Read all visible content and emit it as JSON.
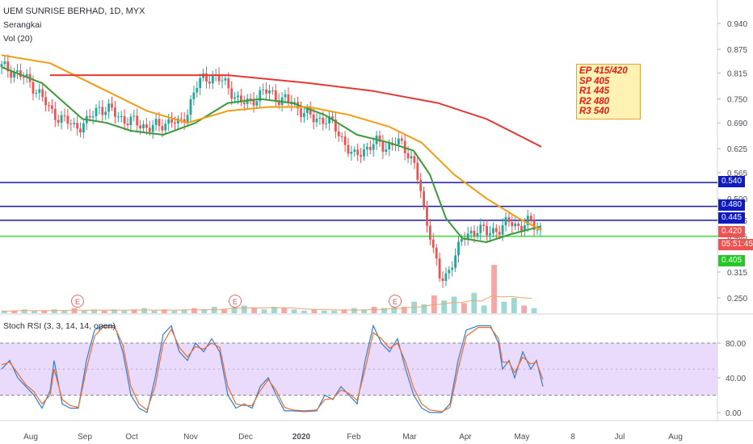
{
  "header": {
    "symbol_line": "UEM SUNRISE BERHAD, 1D, MYX",
    "indicator_1": "Serangkai",
    "indicator_2": "Vol (20)",
    "sub_indicator": "Stoch RSI (3, 3, 14, 14, open)"
  },
  "note": {
    "lines": [
      "EP 415/420",
      "SP 405",
      "R1 445",
      "R2 480",
      "R3 540"
    ]
  },
  "price_tags": [
    {
      "text": "0.540",
      "color": "#0f1bbf"
    },
    {
      "text": "0.480",
      "color": "#0f1bbf"
    },
    {
      "text": "0.445",
      "color": "#0f1bbf"
    },
    {
      "text": "0.420",
      "color": "#ef5350"
    },
    {
      "text": "05:51:45",
      "color": "#ef5350"
    },
    {
      "text": "0.405",
      "color": "#26c726"
    }
  ],
  "colors": {
    "up": "#26a69a",
    "down": "#ef5350",
    "ma_fast": "#3a9a3a",
    "ma_mid": "#f39c12",
    "ma_slow": "#e53935",
    "level_line": "#1a1aa8",
    "support_line": "#33dd33",
    "stoch_k": "#2f7fd8",
    "stoch_d": "#ef6c2c",
    "stoch_band": "#e6d4fb"
  },
  "chart_data": [
    {
      "type": "candlestick",
      "title": "UEM SUNRISE BERHAD, 1D, MYX",
      "x_ticks": [
        "Aug",
        "Sep",
        "Oct",
        "Nov",
        "Dec",
        "2020",
        "Feb",
        "Mar",
        "Apr",
        "May",
        "8",
        "Jul",
        "Aug"
      ],
      "y_ticks": [
        "0.940",
        "0.875",
        "0.815",
        "0.750",
        "0.690",
        "0.625",
        "0.565",
        "0.500",
        "0.445",
        "0.405",
        "0.315",
        "0.250"
      ],
      "ylim": [
        0.22,
        0.97
      ],
      "horizontal_levels": [
        {
          "value": 0.54,
          "label": "R3"
        },
        {
          "value": 0.48,
          "label": "R2"
        },
        {
          "value": 0.445,
          "label": "R1"
        },
        {
          "value": 0.405,
          "label": "SP"
        }
      ],
      "close_series_approx": [
        [
          0,
          0.83
        ],
        [
          15,
          0.82
        ],
        [
          30,
          0.8
        ],
        [
          45,
          0.77
        ],
        [
          60,
          0.72
        ],
        [
          75,
          0.7
        ],
        [
          90,
          0.68
        ],
        [
          105,
          0.69
        ],
        [
          120,
          0.73
        ],
        [
          135,
          0.72
        ],
        [
          150,
          0.7
        ],
        [
          165,
          0.69
        ],
        [
          180,
          0.68
        ],
        [
          195,
          0.68
        ],
        [
          210,
          0.7
        ],
        [
          220,
          0.68
        ],
        [
          230,
          0.72
        ],
        [
          240,
          0.78
        ],
        [
          250,
          0.8
        ],
        [
          262,
          0.81
        ],
        [
          275,
          0.79
        ],
        [
          285,
          0.77
        ],
        [
          295,
          0.74
        ],
        [
          305,
          0.74
        ],
        [
          318,
          0.76
        ],
        [
          330,
          0.77
        ],
        [
          345,
          0.75
        ],
        [
          360,
          0.74
        ],
        [
          372,
          0.72
        ],
        [
          385,
          0.7
        ],
        [
          400,
          0.7
        ],
        [
          412,
          0.68
        ],
        [
          425,
          0.64
        ],
        [
          435,
          0.6
        ],
        [
          445,
          0.62
        ],
        [
          455,
          0.63
        ],
        [
          465,
          0.64
        ],
        [
          475,
          0.63
        ],
        [
          488,
          0.64
        ],
        [
          498,
          0.63
        ],
        [
          505,
          0.61
        ],
        [
          512,
          0.58
        ],
        [
          518,
          0.52
        ],
        [
          524,
          0.45
        ],
        [
          530,
          0.42
        ],
        [
          536,
          0.36
        ],
        [
          542,
          0.3
        ],
        [
          548,
          0.29
        ],
        [
          554,
          0.32
        ],
        [
          560,
          0.36
        ],
        [
          566,
          0.38
        ],
        [
          572,
          0.4
        ],
        [
          580,
          0.41
        ],
        [
          590,
          0.43
        ],
        [
          600,
          0.41
        ],
        [
          610,
          0.42
        ],
        [
          620,
          0.43
        ],
        [
          630,
          0.44
        ],
        [
          640,
          0.43
        ],
        [
          650,
          0.44
        ],
        [
          660,
          0.43
        ],
        [
          668,
          0.42
        ]
      ],
      "moving_averages": [
        {
          "name": "fast",
          "approx": [
            [
              0,
              0.83
            ],
            [
              50,
              0.79
            ],
            [
              100,
              0.7
            ],
            [
              130,
              0.69
            ],
            [
              160,
              0.67
            ],
            [
              200,
              0.66
            ],
            [
              240,
              0.69
            ],
            [
              280,
              0.74
            ],
            [
              320,
              0.75
            ],
            [
              360,
              0.74
            ],
            [
              400,
              0.71
            ],
            [
              440,
              0.66
            ],
            [
              480,
              0.64
            ],
            [
              510,
              0.62
            ],
            [
              530,
              0.56
            ],
            [
              550,
              0.45
            ],
            [
              570,
              0.4
            ],
            [
              600,
              0.39
            ],
            [
              630,
              0.41
            ],
            [
              668,
              0.43
            ]
          ]
        },
        {
          "name": "mid",
          "approx": [
            [
              0,
              0.86
            ],
            [
              60,
              0.84
            ],
            [
              120,
              0.78
            ],
            [
              180,
              0.72
            ],
            [
              230,
              0.69
            ],
            [
              280,
              0.72
            ],
            [
              330,
              0.73
            ],
            [
              380,
              0.73
            ],
            [
              430,
              0.71
            ],
            [
              480,
              0.68
            ],
            [
              520,
              0.64
            ],
            [
              560,
              0.56
            ],
            [
              600,
              0.5
            ],
            [
              640,
              0.45
            ],
            [
              668,
              0.42
            ]
          ]
        },
        {
          "name": "slow",
          "approx": [
            [
              60,
              0.81
            ],
            [
              180,
              0.81
            ],
            [
              280,
              0.81
            ],
            [
              380,
              0.79
            ],
            [
              460,
              0.77
            ],
            [
              540,
              0.74
            ],
            [
              600,
              0.7
            ],
            [
              668,
              0.63
            ]
          ]
        }
      ],
      "volume_pattern_approx": [
        2,
        2,
        3,
        2,
        2,
        3,
        2,
        4,
        2,
        3,
        2,
        3,
        2,
        3,
        4,
        2,
        3,
        2,
        3,
        4,
        3,
        5,
        3,
        8,
        6,
        4,
        3,
        5,
        4,
        3,
        2,
        3,
        2,
        2,
        3,
        4,
        3,
        5,
        4,
        6,
        5,
        9,
        7,
        14,
        10,
        13,
        8,
        16,
        6,
        38,
        9,
        12,
        6,
        4
      ],
      "earnings_markers": [
        "E",
        "E",
        "E"
      ]
    },
    {
      "type": "line",
      "title": "Stoch RSI (3, 3, 14, 14, open)",
      "y_ticks": [
        "80.00",
        "40.00",
        "0.00"
      ],
      "ylim": [
        -10,
        108
      ],
      "band": [
        20,
        80
      ],
      "series": [
        {
          "name": "K",
          "approx": [
            [
              0,
              50
            ],
            [
              10,
              60
            ],
            [
              20,
              40
            ],
            [
              30,
              30
            ],
            [
              40,
              20
            ],
            [
              50,
              5
            ],
            [
              60,
              25
            ],
            [
              65,
              60
            ],
            [
              75,
              10
            ],
            [
              85,
              5
            ],
            [
              95,
              5
            ],
            [
              105,
              60
            ],
            [
              115,
              95
            ],
            [
              125,
              100
            ],
            [
              140,
              100
            ],
            [
              150,
              70
            ],
            [
              160,
              20
            ],
            [
              170,
              5
            ],
            [
              180,
              0
            ],
            [
              190,
              40
            ],
            [
              200,
              90
            ],
            [
              210,
              100
            ],
            [
              220,
              70
            ],
            [
              230,
              60
            ],
            [
              240,
              80
            ],
            [
              250,
              70
            ],
            [
              260,
              85
            ],
            [
              270,
              70
            ],
            [
              280,
              20
            ],
            [
              290,
              5
            ],
            [
              300,
              10
            ],
            [
              310,
              5
            ],
            [
              320,
              30
            ],
            [
              330,
              40
            ],
            [
              340,
              20
            ],
            [
              350,
              2
            ],
            [
              360,
              2
            ],
            [
              375,
              1
            ],
            [
              390,
              2
            ],
            [
              400,
              20
            ],
            [
              410,
              15
            ],
            [
              420,
              30
            ],
            [
              430,
              20
            ],
            [
              440,
              10
            ],
            [
              450,
              60
            ],
            [
              460,
              100
            ],
            [
              470,
              80
            ],
            [
              480,
              70
            ],
            [
              490,
              85
            ],
            [
              500,
              50
            ],
            [
              510,
              20
            ],
            [
              520,
              5
            ],
            [
              530,
              0
            ],
            [
              545,
              0
            ],
            [
              555,
              10
            ],
            [
              565,
              60
            ],
            [
              575,
              95
            ],
            [
              590,
              100
            ],
            [
              605,
              100
            ],
            [
              615,
              80
            ],
            [
              620,
              50
            ],
            [
              628,
              60
            ],
            [
              635,
              40
            ],
            [
              645,
              70
            ],
            [
              655,
              50
            ],
            [
              662,
              60
            ],
            [
              670,
              30
            ]
          ]
        },
        {
          "name": "D",
          "approx": [
            [
              0,
              55
            ],
            [
              10,
              58
            ],
            [
              20,
              45
            ],
            [
              30,
              32
            ],
            [
              40,
              24
            ],
            [
              50,
              10
            ],
            [
              60,
              20
            ],
            [
              65,
              50
            ],
            [
              75,
              15
            ],
            [
              85,
              8
            ],
            [
              95,
              6
            ],
            [
              105,
              50
            ],
            [
              115,
              88
            ],
            [
              125,
              98
            ],
            [
              140,
              98
            ],
            [
              150,
              78
            ],
            [
              160,
              30
            ],
            [
              170,
              10
            ],
            [
              180,
              3
            ],
            [
              190,
              30
            ],
            [
              200,
              80
            ],
            [
              210,
              96
            ],
            [
              220,
              75
            ],
            [
              230,
              64
            ],
            [
              240,
              76
            ],
            [
              250,
              73
            ],
            [
              260,
              80
            ],
            [
              270,
              75
            ],
            [
              280,
              30
            ],
            [
              290,
              10
            ],
            [
              300,
              8
            ],
            [
              310,
              8
            ],
            [
              320,
              25
            ],
            [
              330,
              38
            ],
            [
              340,
              25
            ],
            [
              350,
              6
            ],
            [
              360,
              3
            ],
            [
              375,
              2
            ],
            [
              390,
              3
            ],
            [
              400,
              15
            ],
            [
              410,
              16
            ],
            [
              420,
              26
            ],
            [
              430,
              22
            ],
            [
              440,
              14
            ],
            [
              450,
              50
            ],
            [
              460,
              92
            ],
            [
              470,
              85
            ],
            [
              480,
              74
            ],
            [
              490,
              80
            ],
            [
              500,
              58
            ],
            [
              510,
              28
            ],
            [
              520,
              10
            ],
            [
              530,
              3
            ],
            [
              545,
              1
            ],
            [
              555,
              6
            ],
            [
              565,
              50
            ],
            [
              575,
              88
            ],
            [
              590,
              98
            ],
            [
              605,
              98
            ],
            [
              615,
              85
            ],
            [
              620,
              58
            ],
            [
              628,
              58
            ],
            [
              635,
              46
            ],
            [
              645,
              64
            ],
            [
              655,
              56
            ],
            [
              662,
              58
            ],
            [
              670,
              38
            ]
          ]
        }
      ]
    }
  ]
}
